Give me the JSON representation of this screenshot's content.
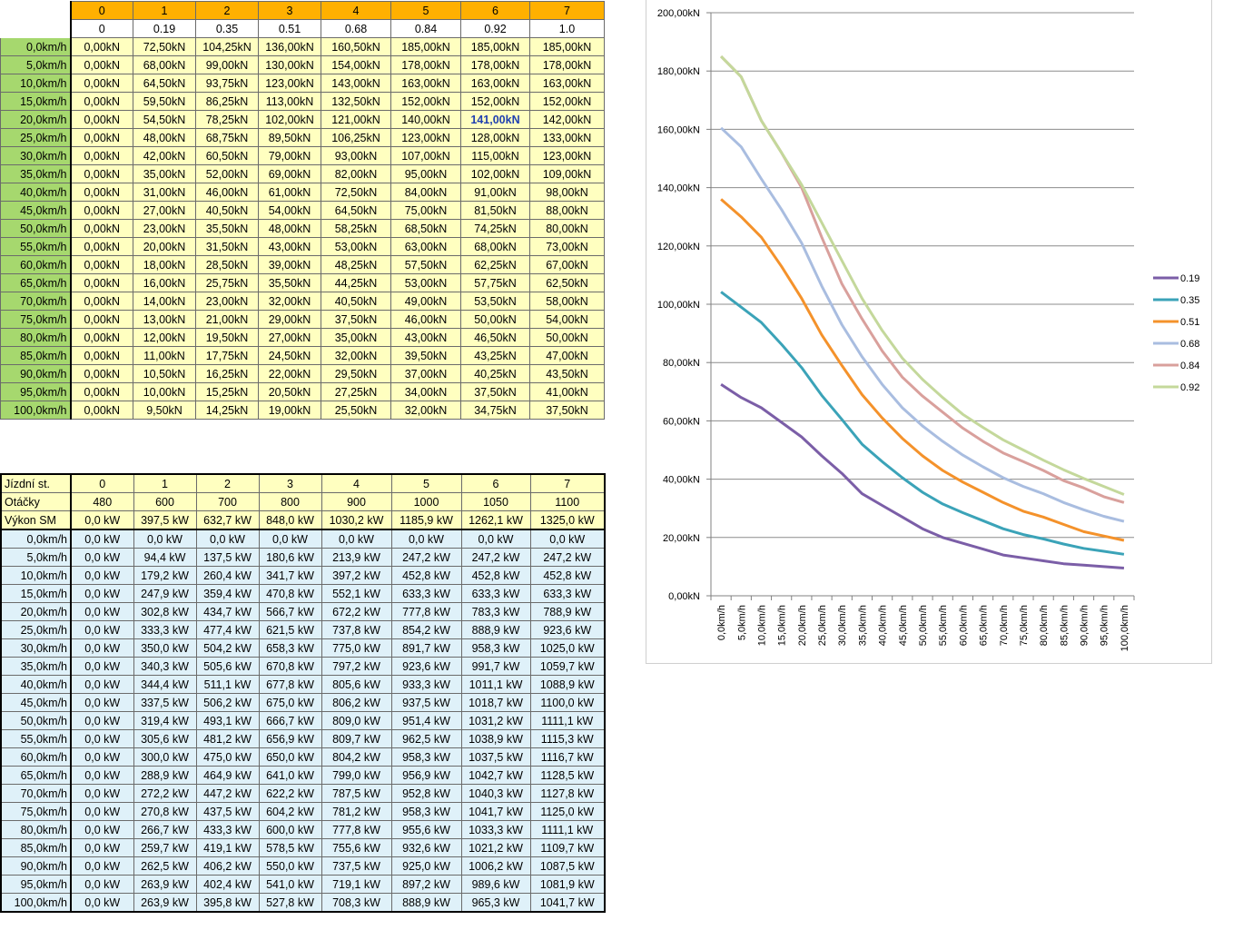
{
  "force_table": {
    "col_headers": [
      "0",
      "1",
      "2",
      "3",
      "4",
      "5",
      "6",
      "7"
    ],
    "col_sub": [
      "0",
      "0.19",
      "0.35",
      "0.51",
      "0.68",
      "0.84",
      "0.92",
      "1.0"
    ],
    "highlight": {
      "row": 4,
      "col": 6
    },
    "rows": [
      {
        "label": "0,0km/h",
        "values": [
          "0,00kN",
          "72,50kN",
          "104,25kN",
          "136,00kN",
          "160,50kN",
          "185,00kN",
          "185,00kN",
          "185,00kN"
        ]
      },
      {
        "label": "5,0km/h",
        "values": [
          "0,00kN",
          "68,00kN",
          "99,00kN",
          "130,00kN",
          "154,00kN",
          "178,00kN",
          "178,00kN",
          "178,00kN"
        ]
      },
      {
        "label": "10,0km/h",
        "values": [
          "0,00kN",
          "64,50kN",
          "93,75kN",
          "123,00kN",
          "143,00kN",
          "163,00kN",
          "163,00kN",
          "163,00kN"
        ]
      },
      {
        "label": "15,0km/h",
        "values": [
          "0,00kN",
          "59,50kN",
          "86,25kN",
          "113,00kN",
          "132,50kN",
          "152,00kN",
          "152,00kN",
          "152,00kN"
        ]
      },
      {
        "label": "20,0km/h",
        "values": [
          "0,00kN",
          "54,50kN",
          "78,25kN",
          "102,00kN",
          "121,00kN",
          "140,00kN",
          "141,00kN",
          "142,00kN"
        ]
      },
      {
        "label": "25,0km/h",
        "values": [
          "0,00kN",
          "48,00kN",
          "68,75kN",
          "89,50kN",
          "106,25kN",
          "123,00kN",
          "128,00kN",
          "133,00kN"
        ]
      },
      {
        "label": "30,0km/h",
        "values": [
          "0,00kN",
          "42,00kN",
          "60,50kN",
          "79,00kN",
          "93,00kN",
          "107,00kN",
          "115,00kN",
          "123,00kN"
        ]
      },
      {
        "label": "35,0km/h",
        "values": [
          "0,00kN",
          "35,00kN",
          "52,00kN",
          "69,00kN",
          "82,00kN",
          "95,00kN",
          "102,00kN",
          "109,00kN"
        ]
      },
      {
        "label": "40,0km/h",
        "values": [
          "0,00kN",
          "31,00kN",
          "46,00kN",
          "61,00kN",
          "72,50kN",
          "84,00kN",
          "91,00kN",
          "98,00kN"
        ]
      },
      {
        "label": "45,0km/h",
        "values": [
          "0,00kN",
          "27,00kN",
          "40,50kN",
          "54,00kN",
          "64,50kN",
          "75,00kN",
          "81,50kN",
          "88,00kN"
        ]
      },
      {
        "label": "50,0km/h",
        "values": [
          "0,00kN",
          "23,00kN",
          "35,50kN",
          "48,00kN",
          "58,25kN",
          "68,50kN",
          "74,25kN",
          "80,00kN"
        ]
      },
      {
        "label": "55,0km/h",
        "values": [
          "0,00kN",
          "20,00kN",
          "31,50kN",
          "43,00kN",
          "53,00kN",
          "63,00kN",
          "68,00kN",
          "73,00kN"
        ]
      },
      {
        "label": "60,0km/h",
        "values": [
          "0,00kN",
          "18,00kN",
          "28,50kN",
          "39,00kN",
          "48,25kN",
          "57,50kN",
          "62,25kN",
          "67,00kN"
        ]
      },
      {
        "label": "65,0km/h",
        "values": [
          "0,00kN",
          "16,00kN",
          "25,75kN",
          "35,50kN",
          "44,25kN",
          "53,00kN",
          "57,75kN",
          "62,50kN"
        ]
      },
      {
        "label": "70,0km/h",
        "values": [
          "0,00kN",
          "14,00kN",
          "23,00kN",
          "32,00kN",
          "40,50kN",
          "49,00kN",
          "53,50kN",
          "58,00kN"
        ]
      },
      {
        "label": "75,0km/h",
        "values": [
          "0,00kN",
          "13,00kN",
          "21,00kN",
          "29,00kN",
          "37,50kN",
          "46,00kN",
          "50,00kN",
          "54,00kN"
        ]
      },
      {
        "label": "80,0km/h",
        "values": [
          "0,00kN",
          "12,00kN",
          "19,50kN",
          "27,00kN",
          "35,00kN",
          "43,00kN",
          "46,50kN",
          "50,00kN"
        ]
      },
      {
        "label": "85,0km/h",
        "values": [
          "0,00kN",
          "11,00kN",
          "17,75kN",
          "24,50kN",
          "32,00kN",
          "39,50kN",
          "43,25kN",
          "47,00kN"
        ]
      },
      {
        "label": "90,0km/h",
        "values": [
          "0,00kN",
          "10,50kN",
          "16,25kN",
          "22,00kN",
          "29,50kN",
          "37,00kN",
          "40,25kN",
          "43,50kN"
        ]
      },
      {
        "label": "95,0km/h",
        "values": [
          "0,00kN",
          "10,00kN",
          "15,25kN",
          "20,50kN",
          "27,25kN",
          "34,00kN",
          "37,50kN",
          "41,00kN"
        ]
      },
      {
        "label": "100,0km/h",
        "values": [
          "0,00kN",
          "9,50kN",
          "14,25kN",
          "19,00kN",
          "25,50kN",
          "32,00kN",
          "34,75kN",
          "37,50kN"
        ]
      }
    ]
  },
  "power_table": {
    "header_rows": [
      {
        "label": "Jízdní st.",
        "values": [
          "0",
          "1",
          "2",
          "3",
          "4",
          "5",
          "6",
          "7"
        ]
      },
      {
        "label": "Otáčky",
        "values": [
          "480",
          "600",
          "700",
          "800",
          "900",
          "1000",
          "1050",
          "1100"
        ]
      },
      {
        "label": "Výkon SM",
        "values": [
          "0,0 kW",
          "397,5 kW",
          "632,7 kW",
          "848,0 kW",
          "1030,2 kW",
          "1185,9 kW",
          "1262,1 kW",
          "1325,0 kW"
        ]
      }
    ],
    "rows": [
      {
        "label": "0,0km/h",
        "values": [
          "0,0 kW",
          "0,0 kW",
          "0,0 kW",
          "0,0 kW",
          "0,0 kW",
          "0,0 kW",
          "0,0 kW",
          "0,0 kW"
        ]
      },
      {
        "label": "5,0km/h",
        "values": [
          "0,0 kW",
          "94,4 kW",
          "137,5 kW",
          "180,6 kW",
          "213,9 kW",
          "247,2 kW",
          "247,2 kW",
          "247,2 kW"
        ]
      },
      {
        "label": "10,0km/h",
        "values": [
          "0,0 kW",
          "179,2 kW",
          "260,4 kW",
          "341,7 kW",
          "397,2 kW",
          "452,8 kW",
          "452,8 kW",
          "452,8 kW"
        ]
      },
      {
        "label": "15,0km/h",
        "values": [
          "0,0 kW",
          "247,9 kW",
          "359,4 kW",
          "470,8 kW",
          "552,1 kW",
          "633,3 kW",
          "633,3 kW",
          "633,3 kW"
        ]
      },
      {
        "label": "20,0km/h",
        "values": [
          "0,0 kW",
          "302,8 kW",
          "434,7 kW",
          "566,7 kW",
          "672,2 kW",
          "777,8 kW",
          "783,3 kW",
          "788,9 kW"
        ]
      },
      {
        "label": "25,0km/h",
        "values": [
          "0,0 kW",
          "333,3 kW",
          "477,4 kW",
          "621,5 kW",
          "737,8 kW",
          "854,2 kW",
          "888,9 kW",
          "923,6 kW"
        ]
      },
      {
        "label": "30,0km/h",
        "values": [
          "0,0 kW",
          "350,0 kW",
          "504,2 kW",
          "658,3 kW",
          "775,0 kW",
          "891,7 kW",
          "958,3 kW",
          "1025,0 kW"
        ]
      },
      {
        "label": "35,0km/h",
        "values": [
          "0,0 kW",
          "340,3 kW",
          "505,6 kW",
          "670,8 kW",
          "797,2 kW",
          "923,6 kW",
          "991,7 kW",
          "1059,7 kW"
        ]
      },
      {
        "label": "40,0km/h",
        "values": [
          "0,0 kW",
          "344,4 kW",
          "511,1 kW",
          "677,8 kW",
          "805,6 kW",
          "933,3 kW",
          "1011,1 kW",
          "1088,9 kW"
        ]
      },
      {
        "label": "45,0km/h",
        "values": [
          "0,0 kW",
          "337,5 kW",
          "506,2 kW",
          "675,0 kW",
          "806,2 kW",
          "937,5 kW",
          "1018,7 kW",
          "1100,0 kW"
        ]
      },
      {
        "label": "50,0km/h",
        "values": [
          "0,0 kW",
          "319,4 kW",
          "493,1 kW",
          "666,7 kW",
          "809,0 kW",
          "951,4 kW",
          "1031,2 kW",
          "1111,1 kW"
        ]
      },
      {
        "label": "55,0km/h",
        "values": [
          "0,0 kW",
          "305,6 kW",
          "481,2 kW",
          "656,9 kW",
          "809,7 kW",
          "962,5 kW",
          "1038,9 kW",
          "1115,3 kW"
        ]
      },
      {
        "label": "60,0km/h",
        "values": [
          "0,0 kW",
          "300,0 kW",
          "475,0 kW",
          "650,0 kW",
          "804,2 kW",
          "958,3 kW",
          "1037,5 kW",
          "1116,7 kW"
        ]
      },
      {
        "label": "65,0km/h",
        "values": [
          "0,0 kW",
          "288,9 kW",
          "464,9 kW",
          "641,0 kW",
          "799,0 kW",
          "956,9 kW",
          "1042,7 kW",
          "1128,5 kW"
        ]
      },
      {
        "label": "70,0km/h",
        "values": [
          "0,0 kW",
          "272,2 kW",
          "447,2 kW",
          "622,2 kW",
          "787,5 kW",
          "952,8 kW",
          "1040,3 kW",
          "1127,8 kW"
        ]
      },
      {
        "label": "75,0km/h",
        "values": [
          "0,0 kW",
          "270,8 kW",
          "437,5 kW",
          "604,2 kW",
          "781,2 kW",
          "958,3 kW",
          "1041,7 kW",
          "1125,0 kW"
        ]
      },
      {
        "label": "80,0km/h",
        "values": [
          "0,0 kW",
          "266,7 kW",
          "433,3 kW",
          "600,0 kW",
          "777,8 kW",
          "955,6 kW",
          "1033,3 kW",
          "1111,1 kW"
        ]
      },
      {
        "label": "85,0km/h",
        "values": [
          "0,0 kW",
          "259,7 kW",
          "419,1 kW",
          "578,5 kW",
          "755,6 kW",
          "932,6 kW",
          "1021,2 kW",
          "1109,7 kW"
        ]
      },
      {
        "label": "90,0km/h",
        "values": [
          "0,0 kW",
          "262,5 kW",
          "406,2 kW",
          "550,0 kW",
          "737,5 kW",
          "925,0 kW",
          "1006,2 kW",
          "1087,5 kW"
        ]
      },
      {
        "label": "95,0km/h",
        "values": [
          "0,0 kW",
          "263,9 kW",
          "402,4 kW",
          "541,0 kW",
          "719,1 kW",
          "897,2 kW",
          "989,6 kW",
          "1081,9 kW"
        ]
      },
      {
        "label": "100,0km/h",
        "values": [
          "0,0 kW",
          "263,9 kW",
          "395,8 kW",
          "527,8 kW",
          "708,3 kW",
          "888,9 kW",
          "965,3 kW",
          "1041,7 kW"
        ]
      }
    ]
  },
  "chart_data": {
    "type": "line",
    "title": "",
    "xlabel": "",
    "ylabel": "",
    "ylim": [
      0,
      200
    ],
    "ytick_labels": [
      "0,00kN",
      "20,00kN",
      "40,00kN",
      "60,00kN",
      "80,00kN",
      "100,00kN",
      "120,00kN",
      "140,00kN",
      "160,00kN",
      "180,00kN",
      "200,00kN"
    ],
    "grid": "horizontal",
    "legend_position": "right",
    "categories": [
      "0,0km/h",
      "5,0km/h",
      "10,0km/h",
      "15,0km/h",
      "20,0km/h",
      "25,0km/h",
      "30,0km/h",
      "35,0km/h",
      "40,0km/h",
      "45,0km/h",
      "50,0km/h",
      "55,0km/h",
      "60,0km/h",
      "65,0km/h",
      "70,0km/h",
      "75,0km/h",
      "80,0km/h",
      "85,0km/h",
      "90,0km/h",
      "95,0km/h",
      "100,0km/h"
    ],
    "series": [
      {
        "name": "0.19",
        "color": "#7b5ea7",
        "values": [
          72.5,
          68,
          64.5,
          59.5,
          54.5,
          48,
          42,
          35,
          31,
          27,
          23,
          20,
          18,
          16,
          14,
          13,
          12,
          11,
          10.5,
          10,
          9.5
        ]
      },
      {
        "name": "0.35",
        "color": "#3ba3b8",
        "values": [
          104.25,
          99,
          93.75,
          86.25,
          78.25,
          68.75,
          60.5,
          52,
          46,
          40.5,
          35.5,
          31.5,
          28.5,
          25.75,
          23,
          21,
          19.5,
          17.75,
          16.25,
          15.25,
          14.25
        ]
      },
      {
        "name": "0.51",
        "color": "#f4922b",
        "values": [
          136,
          130,
          123,
          113,
          102,
          89.5,
          79,
          69,
          61,
          54,
          48,
          43,
          39,
          35.5,
          32,
          29,
          27,
          24.5,
          22,
          20.5,
          19
        ]
      },
      {
        "name": "0.68",
        "color": "#a9bde0",
        "values": [
          160.5,
          154,
          143,
          132.5,
          121,
          106.25,
          93,
          82,
          72.5,
          64.5,
          58.25,
          53,
          48.25,
          44.25,
          40.5,
          37.5,
          35,
          32,
          29.5,
          27.25,
          25.5
        ]
      },
      {
        "name": "0.84",
        "color": "#d9a09c",
        "values": [
          185,
          178,
          163,
          152,
          140,
          123,
          107,
          95,
          84,
          75,
          68.5,
          63,
          57.5,
          53,
          49,
          46,
          43,
          39.5,
          37,
          34,
          32
        ]
      },
      {
        "name": "0.92",
        "color": "#c4d89b",
        "values": [
          185,
          178,
          163,
          152,
          141,
          128,
          115,
          102,
          91,
          81.5,
          74.25,
          68,
          62.25,
          57.75,
          53.5,
          50,
          46.5,
          43.25,
          40.25,
          37.5,
          34.75
        ]
      }
    ]
  }
}
